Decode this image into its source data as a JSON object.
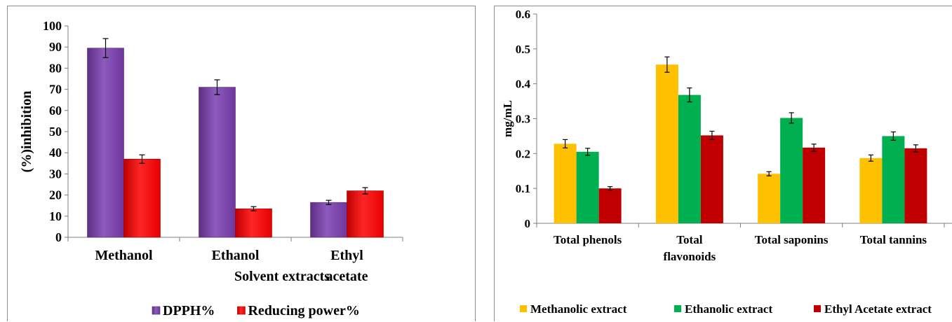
{
  "chart_data": [
    {
      "type": "bar",
      "title": "",
      "xlabel": "Solvent extracts",
      "ylabel": "(%)inhibition",
      "ylim": [
        0,
        100
      ],
      "yticks": [
        0,
        10,
        20,
        30,
        40,
        50,
        60,
        70,
        80,
        90,
        100
      ],
      "categories": [
        "Methanol",
        "Ethanol",
        "Ethyl acetate"
      ],
      "category_lines": [
        [
          "Methanol"
        ],
        [
          "Ethanol"
        ],
        [
          "Ethyl",
          "acetate"
        ]
      ],
      "grid": false,
      "legend_position": "bottom",
      "series": [
        {
          "name": "DPPH%",
          "color": "#7a3db0",
          "values": [
            89.5,
            71,
            16.5
          ],
          "errors": [
            4.5,
            3.5,
            1
          ]
        },
        {
          "name": "Reducing power%",
          "color": "#ff0000",
          "values": [
            37,
            13.5,
            22
          ],
          "errors": [
            2,
            1,
            1.5
          ]
        }
      ]
    },
    {
      "type": "bar",
      "title": "",
      "xlabel": "",
      "ylabel": "mg/mL",
      "ylim": [
        0,
        0.6
      ],
      "yticks": [
        "0",
        "0.1",
        "0.2",
        "0.3",
        "0.4",
        "0.5",
        "0.6"
      ],
      "categories": [
        "Total phenols",
        "Total flavonoids",
        "Total saponins",
        "Total tannins"
      ],
      "category_lines": [
        [
          "Total phenols"
        ],
        [
          "Total",
          "flavonoids"
        ],
        [
          "Total saponins"
        ],
        [
          "Total tannins"
        ]
      ],
      "grid": false,
      "legend_position": "bottom",
      "series": [
        {
          "name": "Methanolic extract",
          "color": "#ffc000",
          "values": [
            0.228,
            0.455,
            0.142,
            0.187
          ],
          "errors": [
            0.012,
            0.022,
            0.006,
            0.009
          ]
        },
        {
          "name": "Ethanolic extract",
          "color": "#00b050",
          "values": [
            0.205,
            0.368,
            0.302,
            0.25
          ],
          "errors": [
            0.01,
            0.02,
            0.015,
            0.012
          ]
        },
        {
          "name": "Ethyl Acetate extract",
          "color": "#c00000",
          "values": [
            0.1,
            0.252,
            0.217,
            0.215
          ],
          "errors": [
            0.005,
            0.012,
            0.01,
            0.01
          ]
        }
      ]
    }
  ]
}
